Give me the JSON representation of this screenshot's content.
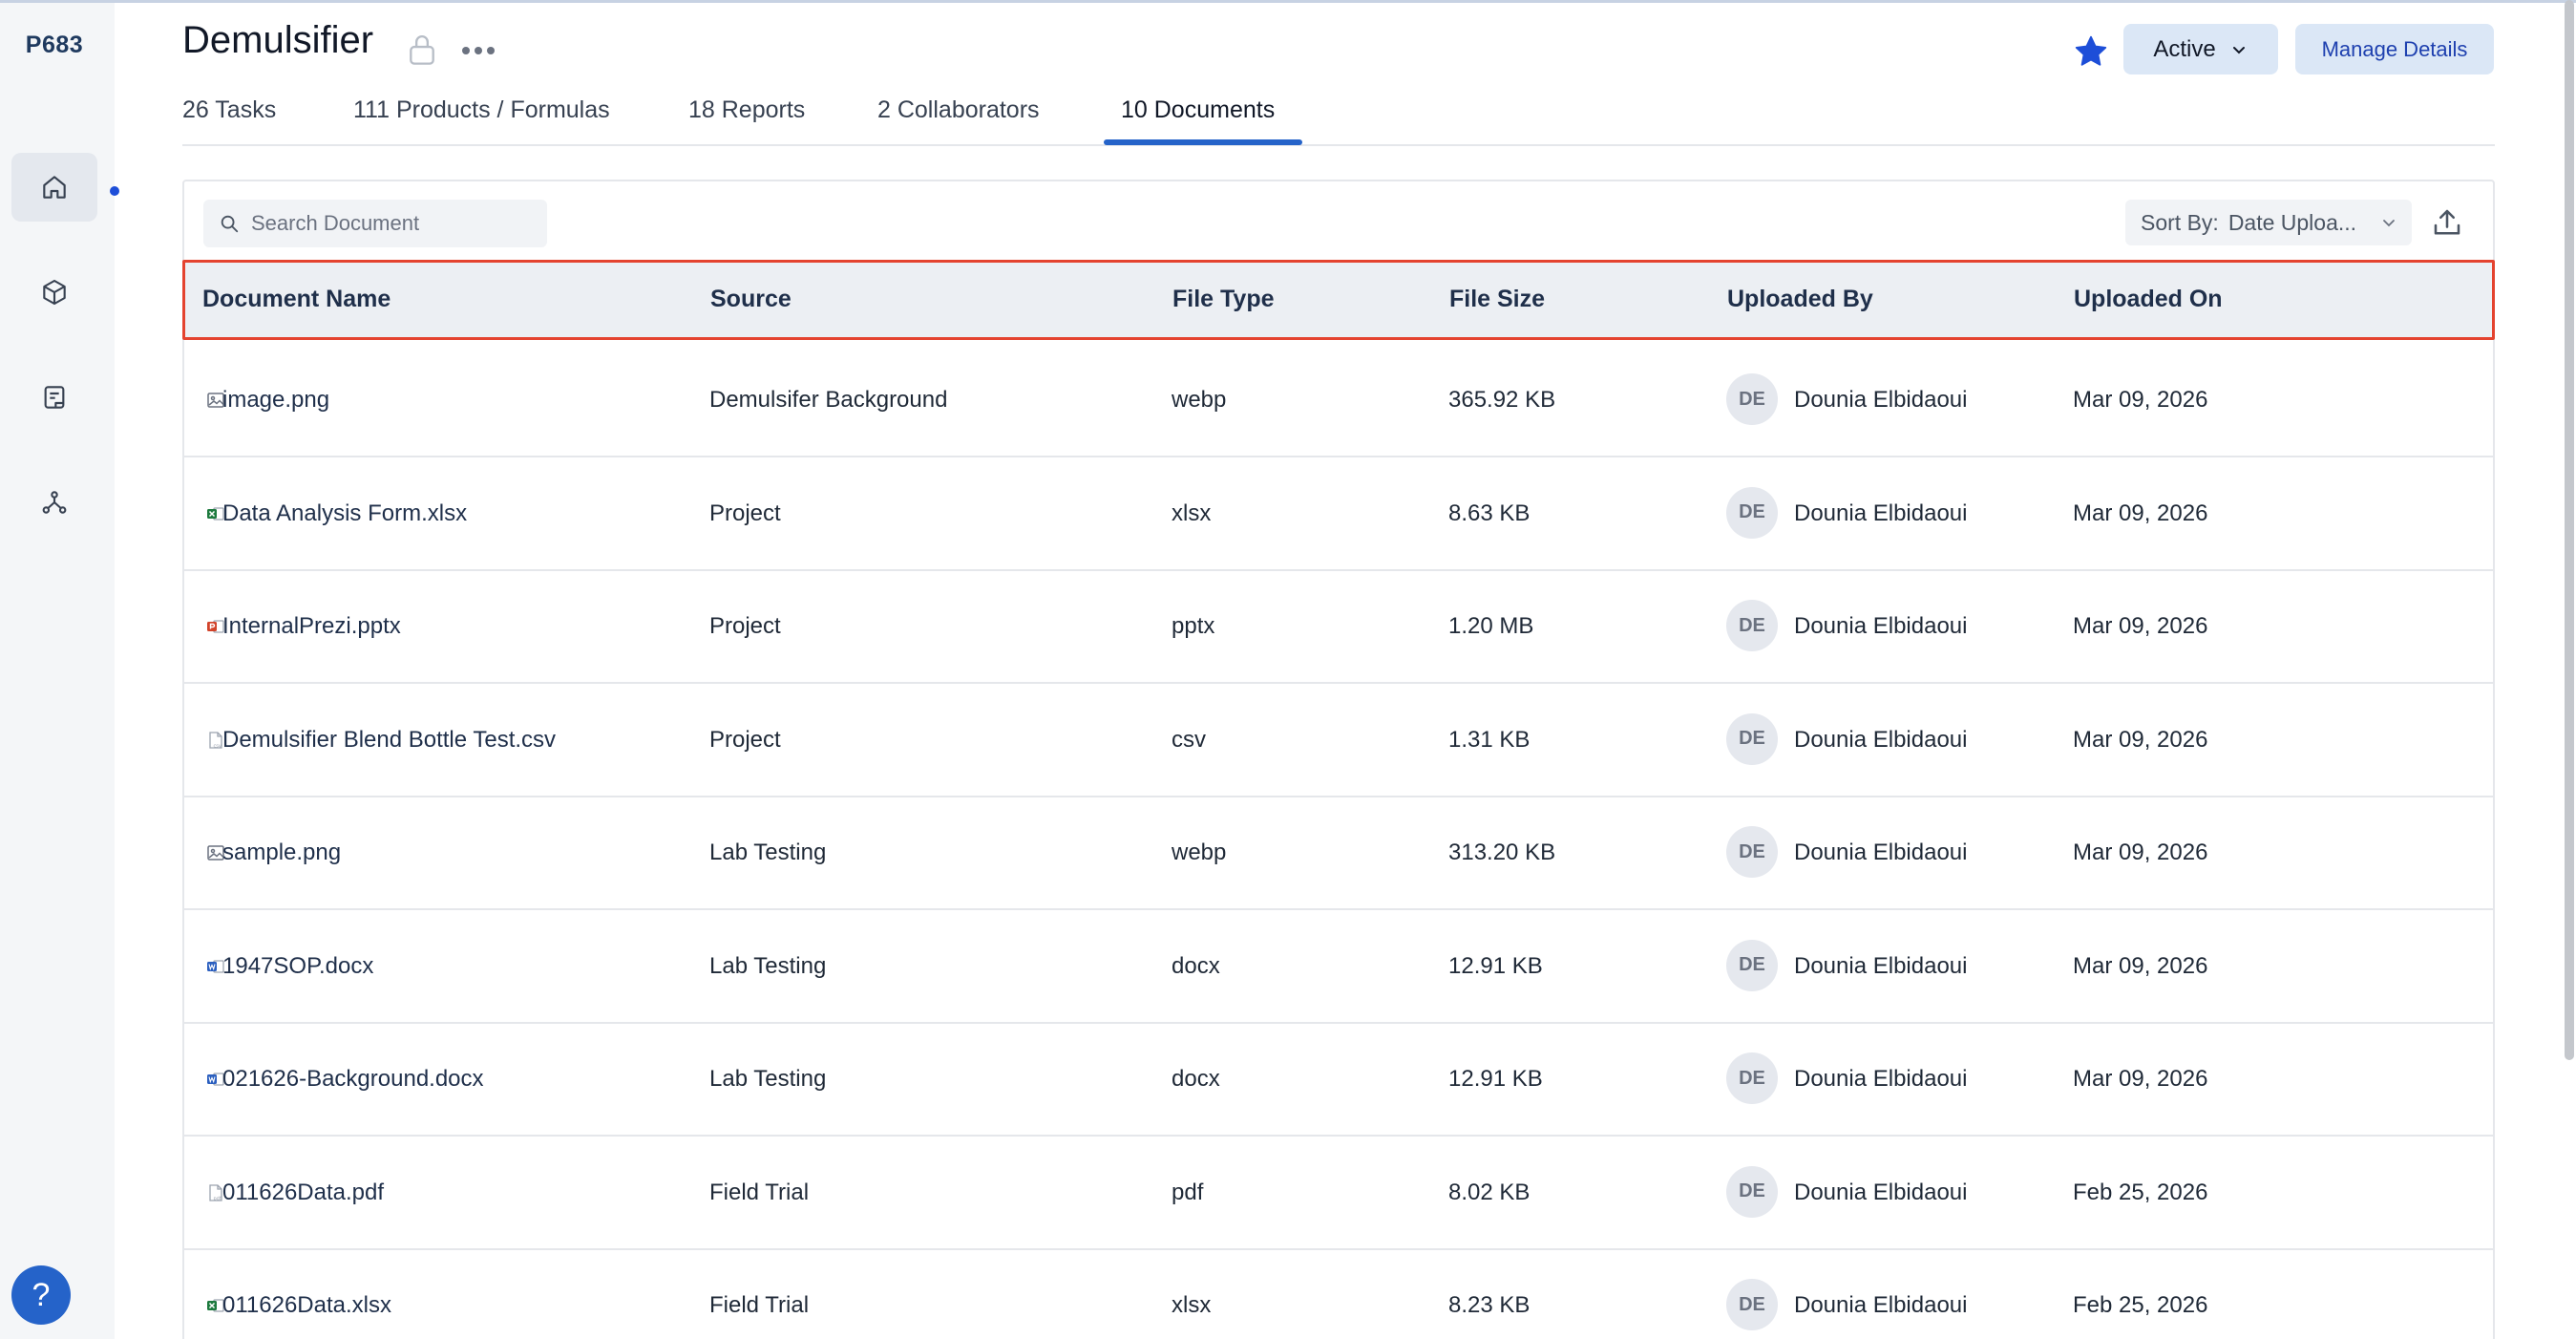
{
  "sidebar": {
    "project_code": "P683",
    "items": [
      {
        "icon": "home-icon",
        "active": true
      },
      {
        "icon": "cube-icon",
        "active": false
      },
      {
        "icon": "notes-icon",
        "active": false
      },
      {
        "icon": "network-icon",
        "active": false
      }
    ],
    "help_label": "?"
  },
  "header": {
    "title": "Demulsifier",
    "status_label": "Active",
    "manage_label": "Manage Details",
    "starred_color": "#1d4ed8"
  },
  "tabs": [
    {
      "label": "26 Tasks",
      "active": false
    },
    {
      "label": "111 Products / Formulas",
      "active": false
    },
    {
      "label": "18 Reports",
      "active": false
    },
    {
      "label": "2 Collaborators",
      "active": false
    },
    {
      "label": "10 Documents",
      "active": true
    }
  ],
  "toolbar": {
    "search_placeholder": "Search Document",
    "sort_label": "Sort By:",
    "sort_value": "Date Uploa..."
  },
  "table": {
    "headers": [
      "Document Name",
      "Source",
      "File Type",
      "File Size",
      "Uploaded By",
      "Uploaded On"
    ],
    "rows": [
      {
        "icon": "image-file-icon",
        "name": "image.png",
        "source": "Demulsifer Background",
        "type": "webp",
        "size": "365.92 KB",
        "initials": "DE",
        "uploader": "Dounia Elbidaoui",
        "date": "Mar 09, 2026"
      },
      {
        "icon": "excel-file-icon",
        "name": "Data Analysis Form.xlsx",
        "source": "Project",
        "type": "xlsx",
        "size": "8.63 KB",
        "initials": "DE",
        "uploader": "Dounia Elbidaoui",
        "date": "Mar 09, 2026"
      },
      {
        "icon": "powerpoint-file-icon",
        "name": "InternalPrezi.pptx",
        "source": "Project",
        "type": "pptx",
        "size": "1.20 MB",
        "initials": "DE",
        "uploader": "Dounia Elbidaoui",
        "date": "Mar 09, 2026"
      },
      {
        "icon": "csv-file-icon",
        "name": "Demulsifier Blend Bottle Test.csv",
        "source": "Project",
        "type": "csv",
        "size": "1.31 KB",
        "initials": "DE",
        "uploader": "Dounia Elbidaoui",
        "date": "Mar 09, 2026"
      },
      {
        "icon": "image-file-icon",
        "name": "sample.png",
        "source": "Lab Testing",
        "type": "webp",
        "size": "313.20 KB",
        "initials": "DE",
        "uploader": "Dounia Elbidaoui",
        "date": "Mar 09, 2026"
      },
      {
        "icon": "word-file-icon",
        "name": "1947SOP.docx",
        "source": "Lab Testing",
        "type": "docx",
        "size": "12.91 KB",
        "initials": "DE",
        "uploader": "Dounia Elbidaoui",
        "date": "Mar 09, 2026"
      },
      {
        "icon": "word-file-icon",
        "name": "021626-Background.docx",
        "source": "Lab Testing",
        "type": "docx",
        "size": "12.91 KB",
        "initials": "DE",
        "uploader": "Dounia Elbidaoui",
        "date": "Mar 09, 2026"
      },
      {
        "icon": "pdf-file-icon",
        "name": "011626Data.pdf",
        "source": "Field Trial",
        "type": "pdf",
        "size": "8.02 KB",
        "initials": "DE",
        "uploader": "Dounia Elbidaoui",
        "date": "Feb 25, 2026"
      },
      {
        "icon": "excel-file-icon",
        "name": "011626Data.xlsx",
        "source": "Field Trial",
        "type": "xlsx",
        "size": "8.23 KB",
        "initials": "DE",
        "uploader": "Dounia Elbidaoui",
        "date": "Feb 25, 2026"
      }
    ]
  }
}
